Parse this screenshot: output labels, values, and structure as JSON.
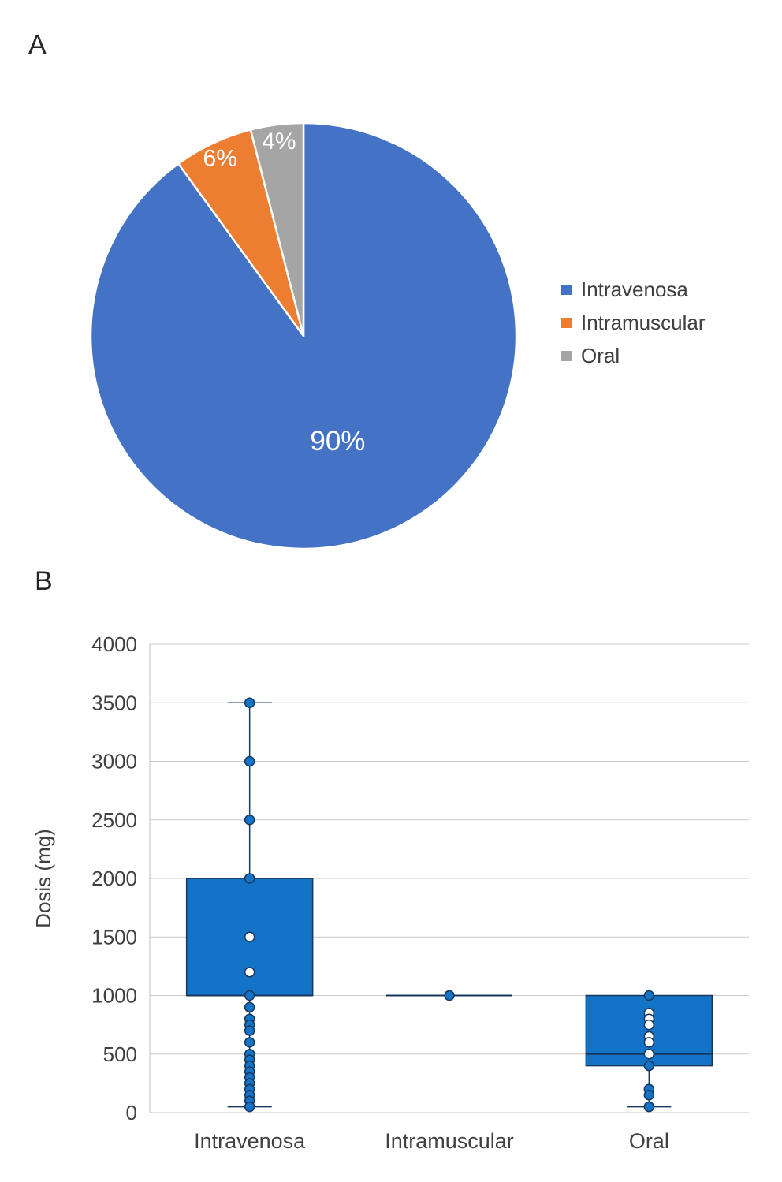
{
  "figure": {
    "background": "#ffffff",
    "panels": {
      "a": {
        "label": "A"
      },
      "b": {
        "label": "B"
      }
    }
  },
  "chart_data": [
    {
      "type": "pie",
      "panel": "A",
      "title": "",
      "legend_position": "right",
      "start_angle_deg": 0,
      "direction": "clockwise",
      "slices": [
        {
          "label": "Intravenosa",
          "value": 90,
          "data_label": "90%",
          "color": "#4472C4"
        },
        {
          "label": "Intramuscular",
          "value": 6,
          "data_label": "6%",
          "color": "#ED7D31"
        },
        {
          "label": "Oral",
          "value": 4,
          "data_label": "4%",
          "color": "#A5A5A5"
        }
      ]
    },
    {
      "type": "boxplot",
      "panel": "B",
      "ylabel": "Dosis (mg)",
      "ylim": [
        0,
        4000
      ],
      "yticks": [
        0,
        500,
        1000,
        1500,
        2000,
        2500,
        3000,
        3500,
        4000
      ],
      "grid": true,
      "gridline_color": "#C9C9C9",
      "axis_color": "#BFBFBF",
      "box_fill": "#1273C7",
      "box_stroke": "#17375E",
      "categories": [
        "Intravenosa",
        "Intramuscular",
        "Oral"
      ],
      "series": [
        {
          "name": "Intravenosa",
          "whisker_low": 50,
          "q1": 1000,
          "median": 1000,
          "q3": 2000,
          "whisker_high": 3500,
          "points": [
            3500,
            3000,
            2500,
            2000,
            1500,
            1200,
            1000,
            900,
            800,
            750,
            700,
            600,
            500,
            450,
            400,
            350,
            300,
            250,
            200,
            150,
            100,
            50
          ]
        },
        {
          "name": "Intramuscular",
          "whisker_low": 1000,
          "q1": 1000,
          "median": 1000,
          "q3": 1000,
          "whisker_high": 1000,
          "points": [
            1000
          ]
        },
        {
          "name": "Oral",
          "whisker_low": 50,
          "q1": 400,
          "median": 500,
          "q3": 1000,
          "whisker_high": 1000,
          "points": [
            1000,
            850,
            800,
            750,
            650,
            600,
            500,
            400,
            200,
            150,
            50
          ]
        }
      ]
    }
  ]
}
